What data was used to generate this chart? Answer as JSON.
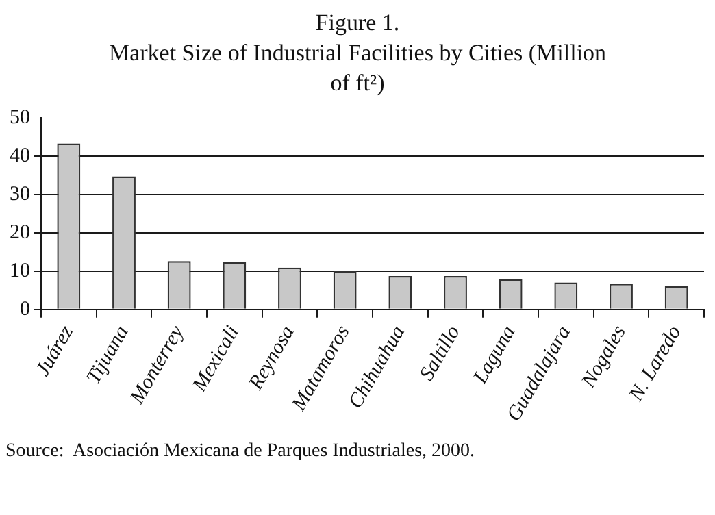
{
  "chart_data": {
    "type": "bar",
    "title": "Figure 1.",
    "subtitle": "Market Size of Industrial Facilities by Cities (Million of ft²)",
    "categories": [
      "Juárez",
      "Tijuana",
      "Monterrey",
      "Mexicali",
      "Reynosa",
      "Matamoros",
      "Chihuahua",
      "Saltillo",
      "Laguna",
      "Guadalajara",
      "Nogales",
      "N. Laredo"
    ],
    "values": [
      43.3,
      34.7,
      12.6,
      12.3,
      10.9,
      10.0,
      8.7,
      8.7,
      7.9,
      7.0,
      6.7,
      6.1
    ],
    "color": "#c8c8c8",
    "ylim": [
      0,
      50
    ],
    "yticks": [
      0,
      10,
      20,
      30,
      40,
      50
    ],
    "grid": "y",
    "legend": false,
    "annotations": [
      "Source:  Asociación Mexicana de Parques Industriales, 2000."
    ]
  }
}
